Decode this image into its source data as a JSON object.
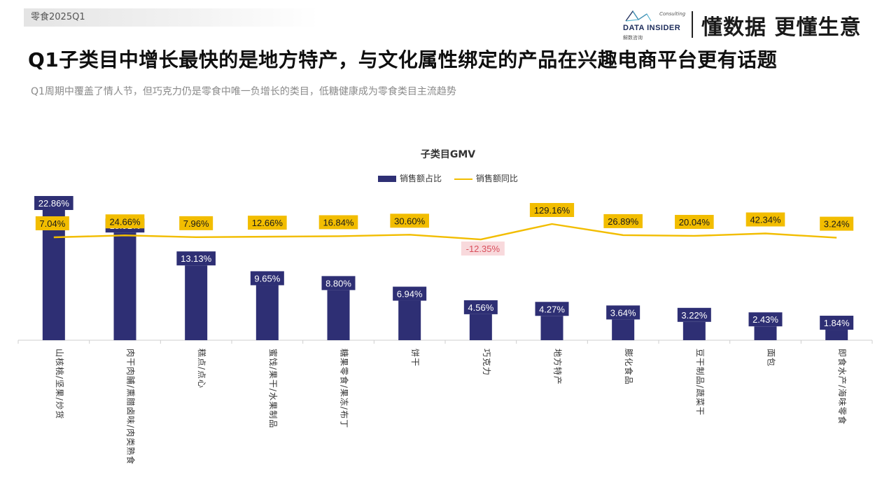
{
  "header": {
    "tag": "零食2025Q1",
    "brand_top": "Consulting",
    "brand_name": "DATA INSIDER",
    "brand_cn": "解数咨询",
    "slogan": "懂数据 更懂生意"
  },
  "headline": "Q1子类目中增长最快的是地方特产，与文化属性绑定的产品在兴趣电商平台更有话题",
  "subhead": "Q1周期中覆盖了情人节，但巧克力仍是零食中唯一负增长的类目，低糖健康成为零食类目主流趋势",
  "colors": {
    "bar": "#2e2f74",
    "line": "#f2bd00",
    "line_label_bg": "#f2bd00",
    "negative_label_bg": "#f8d9dc",
    "negative_label_text": "#d94f5c"
  },
  "chart_data": {
    "type": "bar",
    "title": "子类目GMV",
    "legend_position": "top-center",
    "grid": false,
    "categories": [
      "山核桃/坚果/炒货",
      "肉干肉脯/熏腊卤味/肉类熟食",
      "糕点/点心",
      "蜜饯/果干/水果制品",
      "糖果零食/果冻/布丁",
      "饼干",
      "巧克力",
      "地方特产",
      "膨化食品",
      "豆干制品/蔬菜干",
      "面包",
      "即食水产/海味零食"
    ],
    "series": [
      {
        "name": "销售额占比",
        "type": "bar",
        "values": [
          22.86,
          18.91,
          13.13,
          9.65,
          8.8,
          6.94,
          4.56,
          4.27,
          3.64,
          3.22,
          2.43,
          1.84
        ],
        "labels": [
          "22.86%",
          "18.91%",
          "13.13%",
          "9.65%",
          "8.80%",
          "6.94%",
          "4.56%",
          "4.27%",
          "3.64%",
          "3.22%",
          "2.43%",
          "1.84%"
        ]
      },
      {
        "name": "销售额同比",
        "type": "line",
        "values": [
          7.04,
          24.66,
          7.96,
          12.66,
          16.84,
          30.6,
          -12.35,
          129.16,
          26.89,
          20.04,
          42.34,
          3.24
        ],
        "labels": [
          "7.04%",
          "24.66%",
          "7.96%",
          "12.66%",
          "16.84%",
          "30.60%",
          "-12.35%",
          "129.16%",
          "26.89%",
          "20.04%",
          "42.34%",
          "3.24%"
        ]
      }
    ]
  }
}
